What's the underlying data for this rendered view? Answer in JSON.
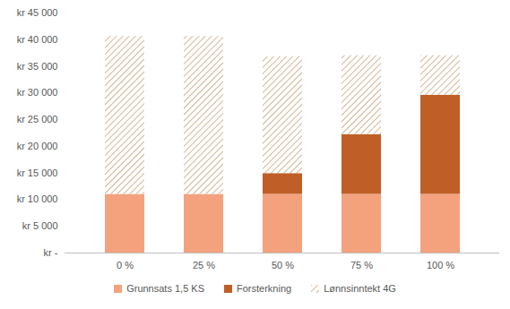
{
  "chart_data": {
    "type": "bar",
    "stacked": true,
    "categories": [
      "0 %",
      "25 %",
      "50 %",
      "75 %",
      "100 %"
    ],
    "series": [
      {
        "name": "Grunnsats 1,5 KS",
        "color": "#f4a27e",
        "values": [
          11000,
          11000,
          11000,
          11000,
          11000
        ]
      },
      {
        "name": "Forsterkning",
        "color": "#bf5f27",
        "values": [
          0,
          0,
          3900,
          11200,
          18600
        ]
      },
      {
        "name": "Lønnsinntekt 4G",
        "color": "#c8a27a",
        "line_style": "hatch",
        "values": [
          29600,
          29600,
          21900,
          14800,
          7400
        ]
      }
    ],
    "ylim": [
      0,
      45000
    ],
    "yticks": [
      {
        "value": 0,
        "label": "kr -"
      },
      {
        "value": 5000,
        "label": "kr 5 000"
      },
      {
        "value": 10000,
        "label": "kr 10 000"
      },
      {
        "value": 15000,
        "label": "kr 15 000"
      },
      {
        "value": 20000,
        "label": "kr 20 000"
      },
      {
        "value": 25000,
        "label": "kr 25 000"
      },
      {
        "value": 30000,
        "label": "kr 30 000"
      },
      {
        "value": 35000,
        "label": "kr 35 000"
      },
      {
        "value": 40000,
        "label": "kr 40 000"
      },
      {
        "value": 45000,
        "label": "kr 45 000"
      }
    ],
    "grid": false,
    "legend": "bottom"
  }
}
